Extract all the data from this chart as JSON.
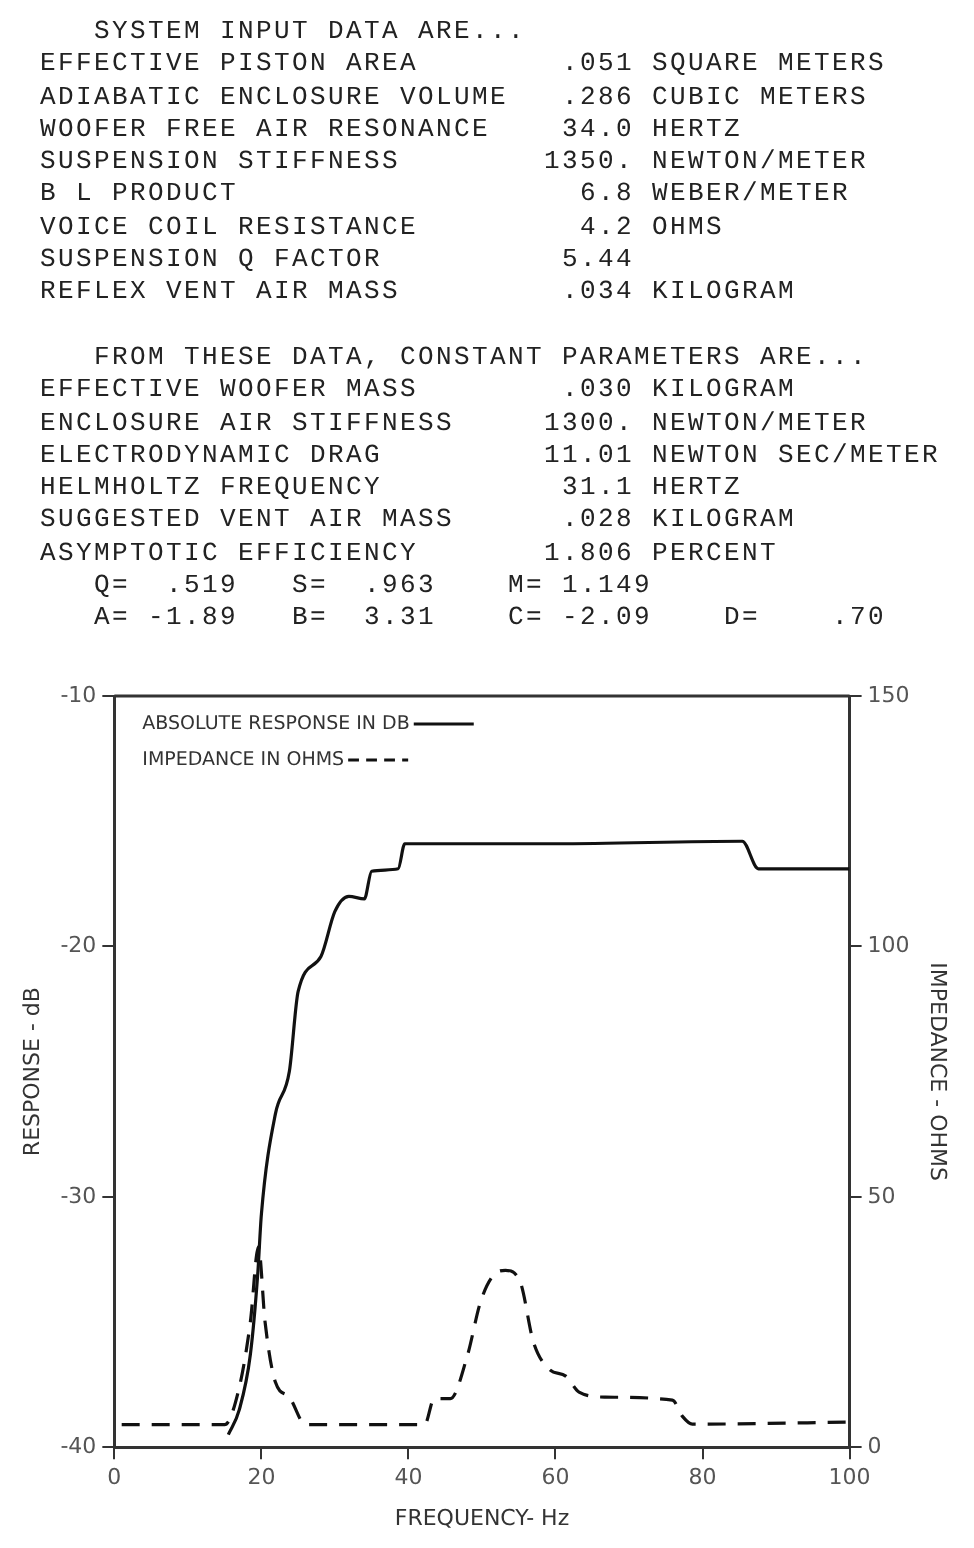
{
  "chart_data": {
    "type": "line",
    "annotations": [
      "   SYSTEM INPUT DATA ARE...",
      "EFFECTIVE PISTON AREA        .051 SQUARE METERS",
      "ADIABATIC ENCLOSURE VOLUME   .286 CUBIC METERS",
      "WOOFER FREE AIR RESONANCE    34.0 HERTZ",
      "SUSPENSION STIFFNESS        1350. NEWTON/METER",
      "B L PRODUCT                   6.8 WEBER/METER",
      "VOICE COIL RESISTANCE         4.2 OHMS",
      "SUSPENSION Q FACTOR          5.44",
      "REFLEX VENT AIR MASS         .034 KILOGRAM",
      "   FROM THESE DATA, CONSTANT PARAMETERS ARE...",
      "EFFECTIVE WOOFER MASS        .030 KILOGRAM",
      "ENCLOSURE AIR STIFFNESS     1300. NEWTON/METER",
      "ELECTRODYNAMIC DRAG         11.01 NEWTON SEC/METER",
      "HELMHOLTZ FREQUENCY          31.1 HERTZ",
      "SUGGESTED VENT AIR MASS      .028 KILOGRAM",
      "ASYMPTOTIC EFFICIENCY       1.806 PERCENT",
      "   Q=  .519   S=  .963    M= 1.149",
      "   A= -1.89   B=  3.31    C= -2.09    D=    .70"
    ],
    "xlabel": "FREQUENCY- Hz",
    "ylabel": "RESPONSE - dB",
    "y2label": "IMPEDANCE - OHMS",
    "xlim": [
      0,
      100
    ],
    "xticks": [
      0,
      20,
      40,
      60,
      80,
      100
    ],
    "ylim": [
      -40,
      -10
    ],
    "yticks": [
      -40,
      -30,
      -20,
      -10
    ],
    "y2lim": [
      0,
      150
    ],
    "y2ticks": [
      0,
      50,
      100,
      150
    ],
    "grid": false,
    "legend": "top left",
    "marker": "none",
    "series": [
      {
        "name": "ABSOLUTE RESPONSE IN DB",
        "color": "#111111",
        "line_style": "solid",
        "x": [
          15.5,
          17,
          18.5,
          19.5,
          20,
          21.9,
          23.8,
          25,
          28.1,
          30,
          31.9,
          34,
          35,
          38.6,
          39.5,
          60,
          85.4,
          87.6,
          100
        ],
        "values": [
          -39.5,
          -38.5,
          -36.3,
          -33.1,
          -30.7,
          -26.7,
          -25.0,
          -21.8,
          -20.4,
          -18.6,
          -18.0,
          -18.1,
          -17.0,
          -16.9,
          -15.9,
          -15.9,
          -15.8,
          -16.9,
          -16.9
        ]
      },
      {
        "name": "IMPEDANCE IN OHMS",
        "color": "#111111",
        "line_style": "dashed",
        "axis": "y2",
        "x": [
          1,
          15,
          17,
          18.5,
          19.6,
          20.5,
          21.9,
          23.8,
          26,
          42.2,
          43.5,
          45.7,
          48,
          49.8,
          51.6,
          53.2,
          55.2,
          57,
          59.2,
          61.4,
          63.2,
          66.8,
          75.9,
          77.3,
          78.6,
          100
        ],
        "values": [
          4.5,
          4.5,
          12,
          25,
          40,
          25,
          13,
          10,
          4.5,
          4.5,
          9.7,
          9.7,
          18.2,
          29,
          34.4,
          35.3,
          33,
          21,
          15.5,
          14.2,
          11,
          10,
          9.4,
          6.1,
          4.6,
          5
        ]
      }
    ]
  }
}
